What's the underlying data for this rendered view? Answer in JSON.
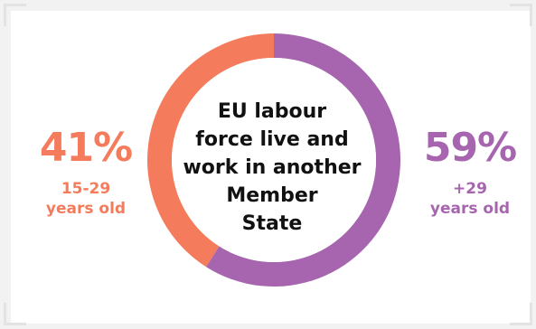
{
  "chart_data": {
    "type": "pie",
    "donut": true,
    "center_text": "EU labour force live and work in another Member State",
    "center_lines": [
      "EU labour",
      "force live and",
      "work in another",
      "Member",
      "State"
    ],
    "slices": [
      {
        "label": "15-29 years old",
        "label_lines": [
          "15-29",
          "years old"
        ],
        "value": 41,
        "display": "41%",
        "color": "#f47c5c"
      },
      {
        "label": "+29 years old",
        "label_lines": [
          "+29",
          "years old"
        ],
        "value": 59,
        "display": "59%",
        "color": "#a665ae"
      }
    ],
    "start": "top",
    "direction": "clockwise",
    "first_slice_drawn": "+29 years old"
  },
  "colors": {
    "background": "#f2f2f2",
    "card": "#ffffff",
    "frame": "#e3e3e3",
    "text": "#111111"
  }
}
